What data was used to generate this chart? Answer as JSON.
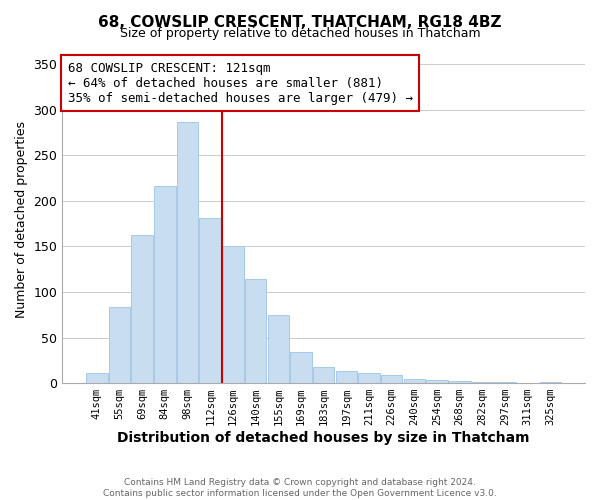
{
  "title": "68, COWSLIP CRESCENT, THATCHAM, RG18 4BZ",
  "subtitle": "Size of property relative to detached houses in Thatcham",
  "xlabel": "Distribution of detached houses by size in Thatcham",
  "ylabel": "Number of detached properties",
  "categories": [
    "41sqm",
    "55sqm",
    "69sqm",
    "84sqm",
    "98sqm",
    "112sqm",
    "126sqm",
    "140sqm",
    "155sqm",
    "169sqm",
    "183sqm",
    "197sqm",
    "211sqm",
    "226sqm",
    "240sqm",
    "254sqm",
    "268sqm",
    "282sqm",
    "297sqm",
    "311sqm",
    "325sqm"
  ],
  "values": [
    11,
    84,
    163,
    216,
    286,
    181,
    150,
    114,
    75,
    34,
    18,
    13,
    11,
    9,
    5,
    3,
    2,
    1,
    1,
    0,
    1
  ],
  "bar_color": "#c8ddf0",
  "bar_edge_color": "#a8c8e8",
  "vline_color": "#cc0000",
  "vline_index": 6,
  "annotation_title": "68 COWSLIP CRESCENT: 121sqm",
  "annotation_line1": "← 64% of detached houses are smaller (881)",
  "annotation_line2": "35% of semi-detached houses are larger (479) →",
  "annotation_box_color": "#ffffff",
  "annotation_box_edgecolor": "#cc0000",
  "ylim": [
    0,
    360
  ],
  "yticks": [
    0,
    50,
    100,
    150,
    200,
    250,
    300,
    350
  ],
  "footer_line1": "Contains HM Land Registry data © Crown copyright and database right 2024.",
  "footer_line2": "Contains public sector information licensed under the Open Government Licence v3.0.",
  "background_color": "#ffffff",
  "grid_color": "#cccccc"
}
